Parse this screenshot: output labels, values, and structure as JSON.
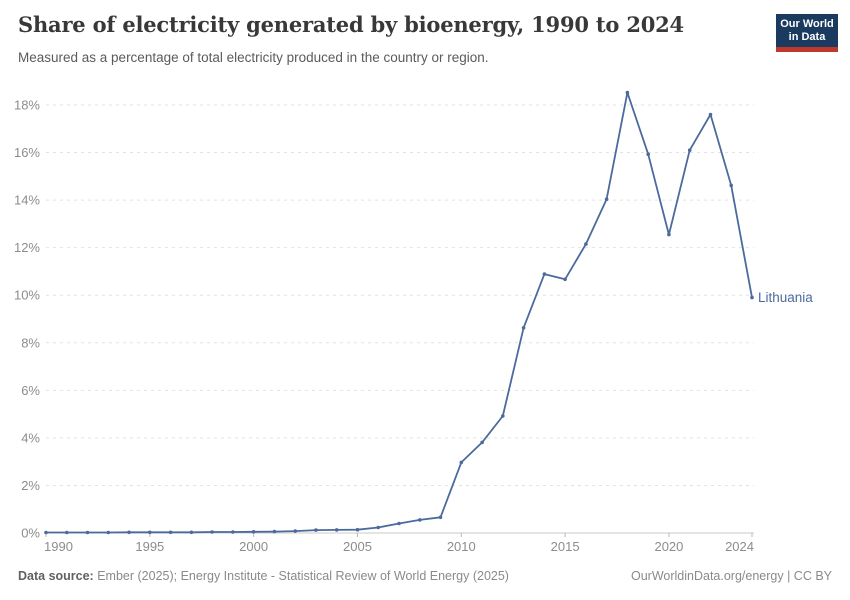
{
  "header": {
    "title": "Share of electricity generated by bioenergy, 1990 to 2024",
    "subtitle": "Measured as a percentage of total electricity produced in the country or region.",
    "logo": {
      "line1": "Our World",
      "line2": "in Data",
      "bg_color": "#1a3a5f",
      "bar_color": "#c0372c"
    }
  },
  "chart_data": {
    "type": "line",
    "title": "Share of electricity generated by bioenergy, 1990 to 2024",
    "xlabel": "",
    "ylabel": "",
    "xlim": [
      1990,
      2024
    ],
    "ylim": [
      0,
      18.6
    ],
    "grid": "horizontal-dashed",
    "legend_position": "end-of-line-label",
    "x_ticks": [
      1990,
      1995,
      2000,
      2005,
      2010,
      2015,
      2020,
      2024
    ],
    "y_ticks": [
      0,
      2,
      4,
      6,
      8,
      10,
      12,
      14,
      16,
      18
    ],
    "y_tick_suffix": "%",
    "series": [
      {
        "name": "Lithuania",
        "color": "#4C6A9C",
        "x": [
          1990,
          1991,
          1992,
          1993,
          1994,
          1995,
          1996,
          1997,
          1998,
          1999,
          2000,
          2001,
          2002,
          2003,
          2004,
          2005,
          2006,
          2007,
          2008,
          2009,
          2010,
          2011,
          2012,
          2013,
          2014,
          2015,
          2016,
          2017,
          2018,
          2019,
          2020,
          2021,
          2022,
          2023,
          2024
        ],
        "values": [
          0.02,
          0.02,
          0.02,
          0.02,
          0.03,
          0.03,
          0.03,
          0.03,
          0.04,
          0.04,
          0.05,
          0.06,
          0.08,
          0.12,
          0.13,
          0.14,
          0.23,
          0.4,
          0.55,
          0.66,
          2.97,
          3.81,
          4.92,
          8.63,
          10.89,
          10.67,
          12.15,
          14.04,
          18.52,
          15.93,
          12.55,
          16.1,
          17.6,
          14.62,
          9.9
        ]
      }
    ],
    "colors": {
      "line": "#4C6A9C",
      "gridline": "#e2e2e2",
      "axis_line": "#c8c8c8",
      "tick_text": "#8c8c8c"
    }
  },
  "footer": {
    "datasource_label": "Data source:",
    "datasource_text": "Ember (2025); Energy Institute - Statistical Review of World Energy (2025)",
    "site_text": "OurWorldinData.org/energy | CC BY"
  }
}
